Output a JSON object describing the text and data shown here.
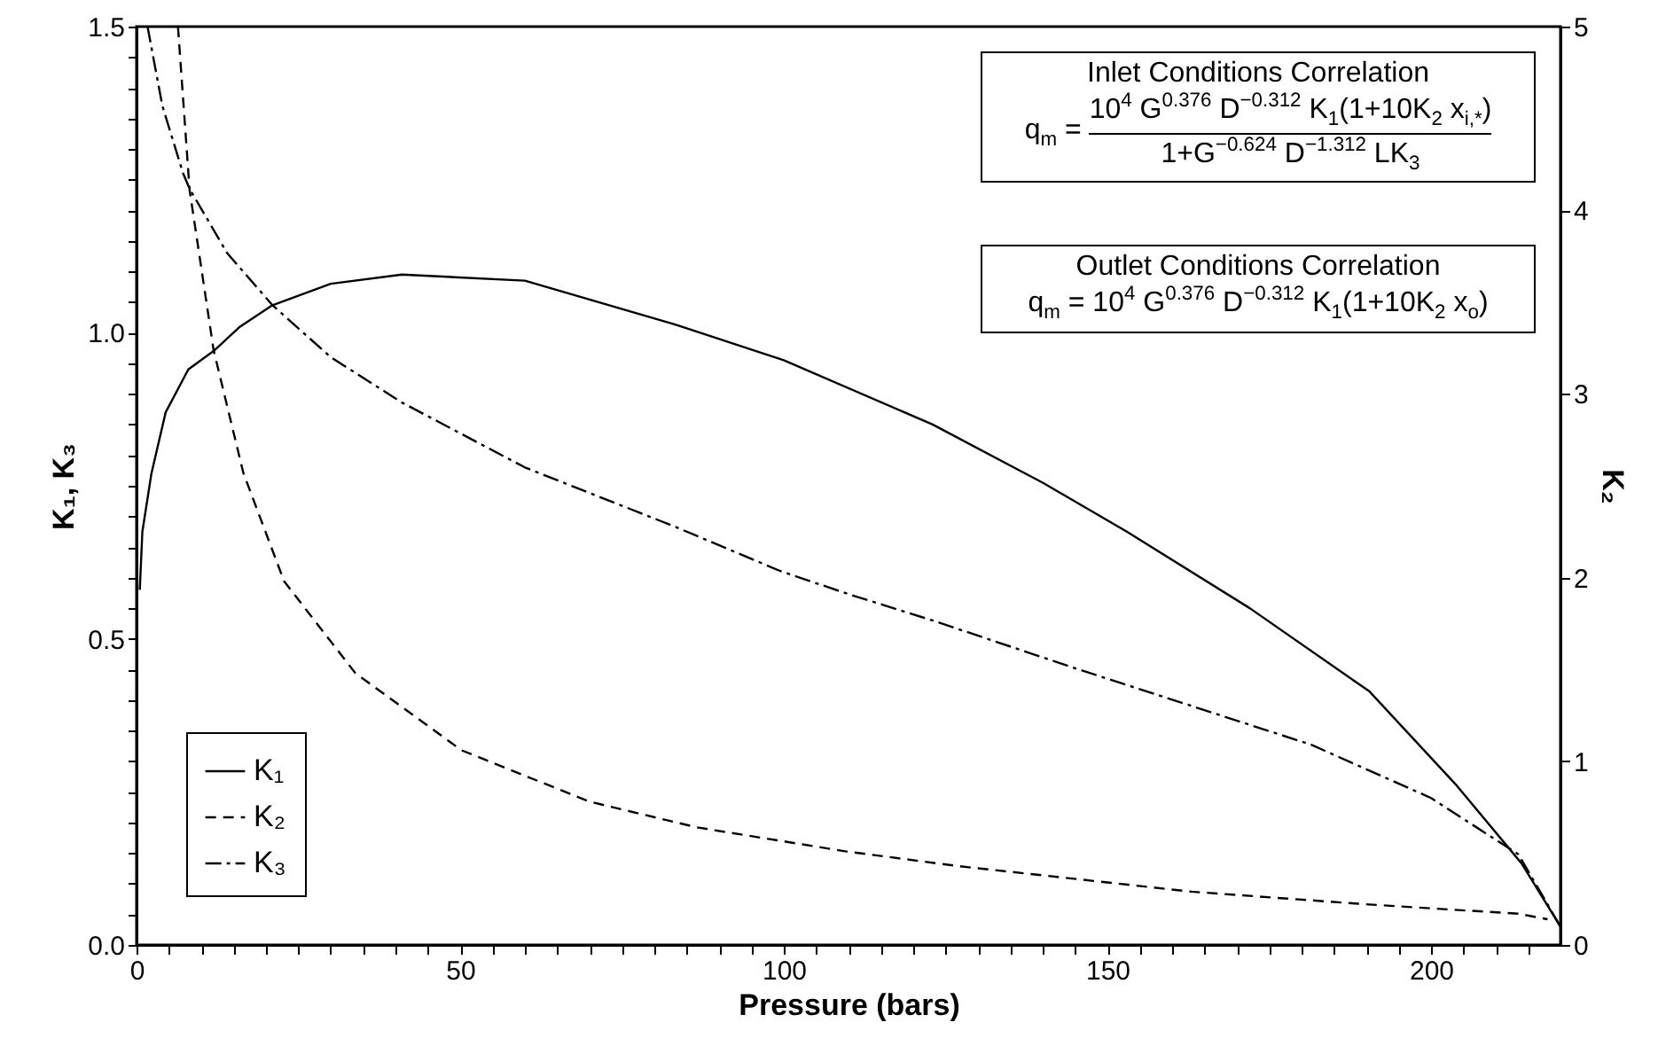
{
  "chart_data": {
    "type": "line",
    "xlabel": "Pressure (bars)",
    "ylabel": "K₁, K₃",
    "y2label": "K₂",
    "annotations": [
      "Inlet Conditions Correlation",
      "q$_{m}$ =",
      "10$^{4}$ G$^{0.376}$ D$^{−0.312}$ K$_{1}$(1+10K$_{2}$ x$_{i,*}$)",
      "1+G$^{−0.624}$ D$^{−1.312}$ LK$_{3}$",
      "Outlet Conditions Correlation",
      "q$_{m}$ = 10$^{4}$ G$^{0.376}$ D$^{−0.312}$ K$_{1}$(1+10K$_{2}$ x$_{o}$)"
    ],
    "series": [
      {
        "name": "K₁",
        "color": "#000000",
        "line_style": "solid",
        "x": [
          0.5,
          0.9,
          2.3,
          4.5,
          8,
          11.9,
          16,
          21,
          30,
          41,
          60,
          83,
          100,
          123,
          140,
          153,
          172,
          190.5,
          204,
          214,
          220
        ],
        "values": [
          0.58,
          0.675,
          0.77,
          0.87,
          0.94,
          0.97,
          1.01,
          1.045,
          1.08,
          1.095,
          1.085,
          1.014,
          0.955,
          0.85,
          0.755,
          0.675,
          0.55,
          0.414,
          0.26,
          0.133,
          0.03
        ]
      },
      {
        "name": "K₂",
        "color": "#000000",
        "line_style": "dashed",
        "axis": "y2",
        "x": [
          6.4,
          8.2,
          11.9,
          16.5,
          22.8,
          33.8,
          50.2,
          70,
          86.6,
          109.5,
          126.8,
          163,
          190.5,
          213.5,
          218
        ],
        "values": [
          5,
          4.11,
          3.24,
          2.57,
          1.98,
          1.48,
          1.06,
          0.78,
          0.64,
          0.51,
          0.43,
          0.29,
          0.22,
          0.17,
          0.14
        ]
      },
      {
        "name": "K₃",
        "color": "#000000",
        "line_style": "dashdot",
        "x": [
          1.7,
          4,
          7.2,
          8.2,
          14,
          21,
          30,
          41,
          60,
          83,
          99.4,
          110,
          123,
          145,
          181.5,
          200,
          213.5,
          220
        ],
        "values": [
          1.5,
          1.37,
          1.26,
          1.235,
          1.13,
          1.045,
          0.96,
          0.886,
          0.78,
          0.684,
          0.611,
          0.573,
          0.53,
          0.452,
          0.327,
          0.24,
          0.148,
          0.03
        ]
      }
    ],
    "xlim": [
      0,
      220
    ],
    "ylim": [
      0,
      1.5
    ],
    "y2lim": [
      0,
      5
    ],
    "xticks": [
      0,
      {
        "value": 5,
        "label": null
      },
      {
        "value": 10,
        "label": null
      },
      {
        "value": 15,
        "label": null
      },
      {
        "value": 20,
        "label": null
      },
      {
        "value": 25,
        "label": null
      },
      {
        "value": 30,
        "label": null
      },
      {
        "value": 35,
        "label": null
      },
      {
        "value": 40,
        "label": null
      },
      {
        "value": 45,
        "label": null
      },
      50,
      {
        "value": 55,
        "label": null
      },
      {
        "value": 60,
        "label": null
      },
      {
        "value": 65,
        "label": null
      },
      {
        "value": 70,
        "label": null
      },
      {
        "value": 75,
        "label": null
      },
      {
        "value": 80,
        "label": null
      },
      {
        "value": 85,
        "label": null
      },
      {
        "value": 90,
        "label": null
      },
      {
        "value": 95,
        "label": null
      },
      100,
      {
        "value": 105,
        "label": null
      },
      {
        "value": 110,
        "label": null
      },
      {
        "value": 115,
        "label": null
      },
      {
        "value": 120,
        "label": null
      },
      {
        "value": 125,
        "label": null
      },
      {
        "value": 130,
        "label": null
      },
      {
        "value": 135,
        "label": null
      },
      {
        "value": 140,
        "label": null
      },
      {
        "value": 145,
        "label": null
      },
      150,
      {
        "value": 155,
        "label": null
      },
      {
        "value": 160,
        "label": null
      },
      {
        "value": 165,
        "label": null
      },
      {
        "value": 170,
        "label": null
      },
      {
        "value": 175,
        "label": null
      },
      {
        "value": 180,
        "label": null
      },
      {
        "value": 185,
        "label": null
      },
      {
        "value": 190,
        "label": null
      },
      {
        "value": 195,
        "label": null
      },
      200,
      {
        "value": 205,
        "label": null
      },
      {
        "value": 210,
        "label": null
      },
      {
        "value": 215,
        "label": null
      }
    ],
    "yticks": [
      {
        "value": 0,
        "label": "0.0"
      },
      {
        "value": 0.05,
        "label": null
      },
      {
        "value": 0.1,
        "label": null
      },
      {
        "value": 0.15,
        "label": null
      },
      {
        "value": 0.2,
        "label": null
      },
      {
        "value": 0.25,
        "label": null
      },
      {
        "value": 0.3,
        "label": null
      },
      {
        "value": 0.35,
        "label": null
      },
      {
        "value": 0.4,
        "label": null
      },
      {
        "value": 0.45,
        "label": null
      },
      {
        "value": 0.5,
        "label": "0.5"
      },
      {
        "value": 0.55,
        "label": null
      },
      {
        "value": 0.6,
        "label": null
      },
      {
        "value": 0.65,
        "label": null
      },
      {
        "value": 0.7,
        "label": null
      },
      {
        "value": 0.75,
        "label": null
      },
      {
        "value": 0.8,
        "label": null
      },
      {
        "value": 0.85,
        "label": null
      },
      {
        "value": 0.9,
        "label": null
      },
      {
        "value": 0.95,
        "label": null
      },
      {
        "value": 1,
        "label": "1.0"
      },
      {
        "value": 1.05,
        "label": null
      },
      {
        "value": 1.1,
        "label": null
      },
      {
        "value": 1.15,
        "label": null
      },
      {
        "value": 1.2,
        "label": null
      },
      {
        "value": 1.25,
        "label": null
      },
      {
        "value": 1.3,
        "label": null
      },
      {
        "value": 1.35,
        "label": null
      },
      {
        "value": 1.4,
        "label": null
      },
      {
        "value": 1.45,
        "label": null
      },
      {
        "value": 1.5,
        "label": "1.5"
      }
    ],
    "y2ticks": [
      0,
      1,
      2,
      3,
      4,
      5
    ],
    "grid": false,
    "legend": "bottom left",
    "marker": "none"
  }
}
